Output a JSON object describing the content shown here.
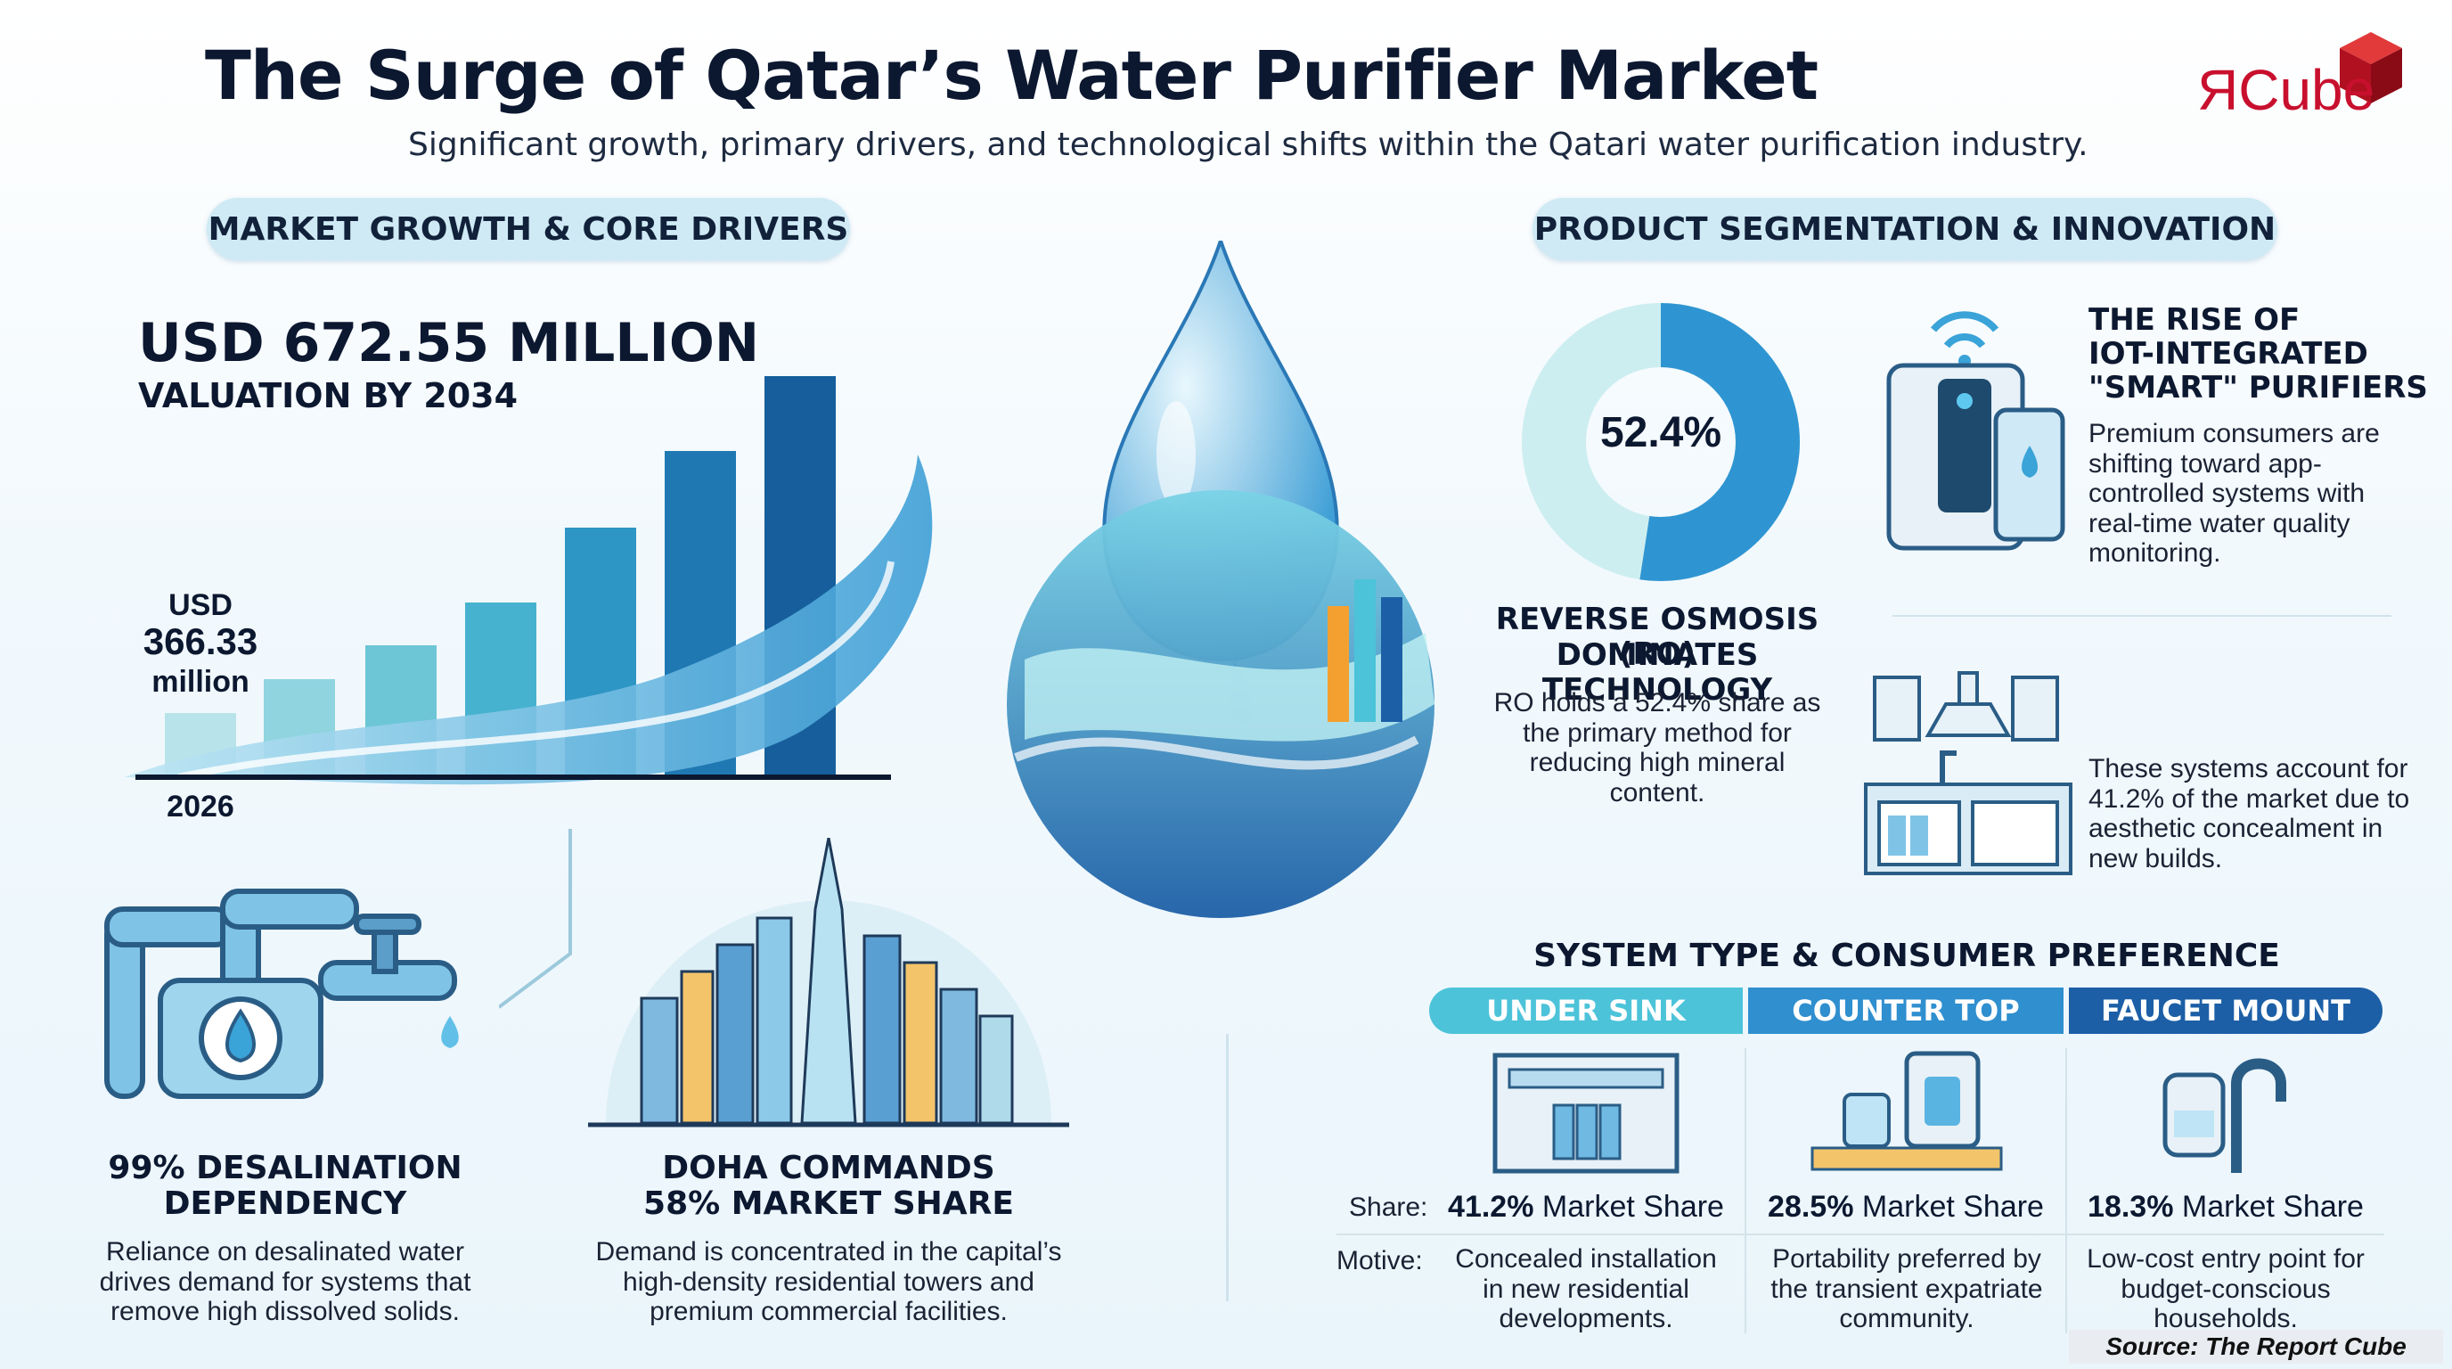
{
  "header": {
    "title": "The Surge of Qatar’s Water Purifier Market",
    "subtitle": "Significant growth, primary drivers, and technological shifts within the Qatari water purification industry.",
    "logo_text": "ЯCube"
  },
  "left": {
    "section_label": "MARKET GROWTH & CORE DRIVERS",
    "valuation_value": "USD 672.55 MILLION",
    "valuation_label": "VALUATION BY 2034",
    "start_value_line1": "USD",
    "start_value_line2": "366.33",
    "start_value_line3": "million",
    "start_year": "2026",
    "desal_title_line1": "99% DESALINATION",
    "desal_title_line2": "DEPENDENCY",
    "desal_text": "Reliance on desalinated water drives demand for systems that remove high dissolved solids.",
    "doha_title_line1": "DOHA COMMANDS",
    "doha_title_line2": "58% MARKET SHARE",
    "doha_text": "Demand is concentrated in the capital’s high-density residential towers and premium commercial facilities."
  },
  "right": {
    "section_label": "PRODUCT SEGMENTATION & INNOVATION",
    "ro_share": "52.4%",
    "ro_share_value": 52.4,
    "ro_title_line1": "REVERSE OSMOSIS (RO)",
    "ro_title_line2": "DOMINATES TECHNOLOGY",
    "ro_text": "RO holds a 52.4% share as the primary method for reducing high mineral content.",
    "iot_title_line1": "THE RISE OF",
    "iot_title_line2": "IOT-INTEGRATED",
    "iot_title_line3": "\"SMART\" PURIFIERS",
    "iot_text": "Premium consumers are shifting toward app-controlled systems with real-time water quality monitoring.",
    "sink_text": "These systems account for 41.2% of the market due to aesthetic concealment in new builds.",
    "table_title": "SYSTEM TYPE & CONSUMER PREFERENCE",
    "share_label": "Share:",
    "motive_label": "Motive:",
    "columns": [
      {
        "header": "UNDER SINK",
        "share_pct": "41.2%",
        "share_suffix": " Market Share",
        "motive": "Concealed installation in new residential developments.",
        "color": "#4cc3d9"
      },
      {
        "header": "COUNTER TOP",
        "share_pct": "28.5%",
        "share_suffix": " Market Share",
        "motive": "Portability preferred by the transient expatriate community.",
        "color": "#2f8fcf"
      },
      {
        "header": "FAUCET MOUNT",
        "share_pct": "18.3%",
        "share_suffix": " Market Share",
        "motive": "Low-cost entry point for budget-conscious households.",
        "color": "#1c5fa6"
      }
    ]
  },
  "footer": {
    "source": "Source: The Report Cube"
  },
  "colors": {
    "accent_teal": "#4cc3d9",
    "accent_blue": "#2f8fcf",
    "accent_navy": "#1c5fa6",
    "pill_bg": "#cfeaf4",
    "logo_red": "#c8102e"
  }
}
